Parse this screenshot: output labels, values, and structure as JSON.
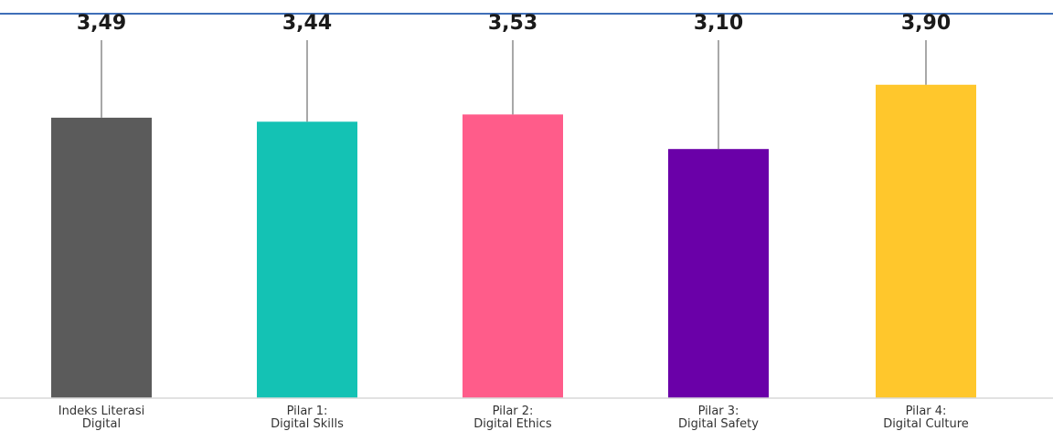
{
  "chart_data": {
    "type": "bar",
    "categories": [
      [
        "Indeks Literasi",
        "Digital"
      ],
      [
        "Pilar 1:",
        "Digital Skills"
      ],
      [
        "Pilar 2:",
        "Digital Ethics"
      ],
      [
        "Pilar 3:",
        "Digital Safety"
      ],
      [
        "Pilar 4:",
        "Digital Culture"
      ]
    ],
    "values": [
      3.49,
      3.44,
      3.53,
      3.1,
      3.9
    ],
    "value_labels": [
      "3,49",
      "3,44",
      "3,53",
      "3,10",
      "3,90"
    ],
    "colors": [
      "#5b5b5b",
      "#14c2b4",
      "#ff5c8a",
      "#6a00a8",
      "#ffc72c"
    ],
    "ylim": [
      0,
      5
    ],
    "grid": false,
    "legend": "none",
    "title": "",
    "xlabel": "",
    "ylabel": ""
  },
  "colors": {
    "background": "#ffffff",
    "baseline": "#d9d9d9",
    "top_line": "#3f6fb8",
    "leader_line": "#8a8a8a"
  }
}
